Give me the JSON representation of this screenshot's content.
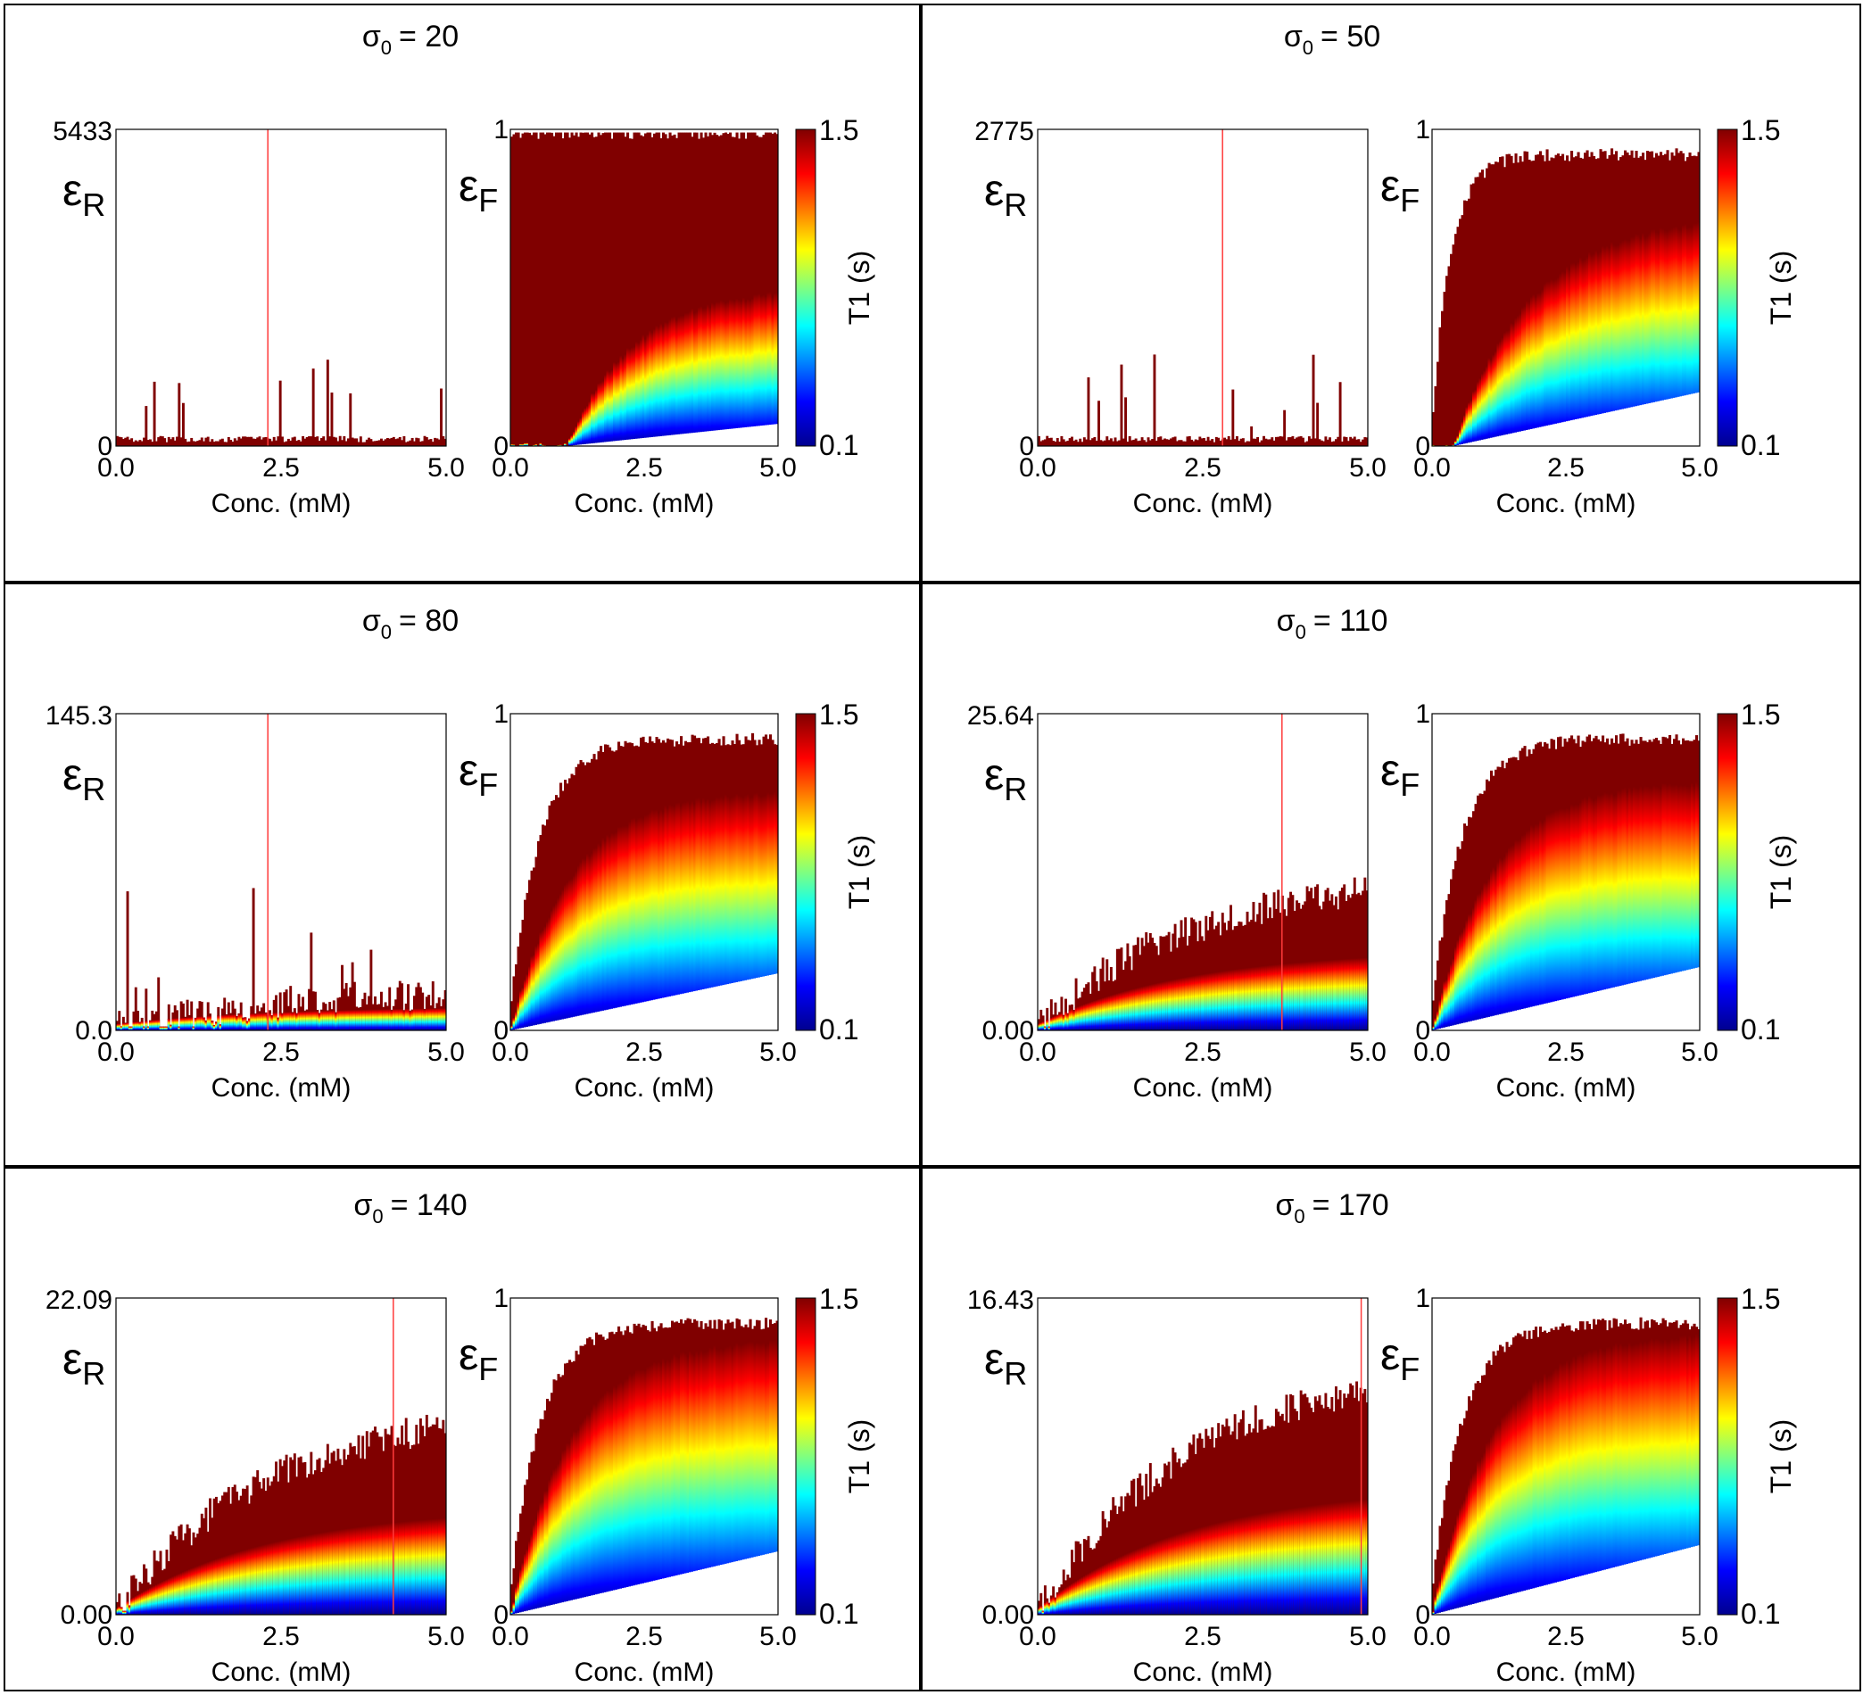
{
  "colors": {
    "colormap": [
      "#00008f",
      "#0000ff",
      "#00ffff",
      "#ffff00",
      "#ff0000",
      "#800000"
    ],
    "red_line": "#ff3b3b",
    "frame": "#000000"
  },
  "chart_data": [
    {
      "panel": "top-left",
      "title_prefix": "σ",
      "title_sub": "0",
      "title_suffix": "= 20",
      "sigma0": 20,
      "eps_r": {
        "type": "heatmap",
        "ylabel_main": "ε",
        "ylabel_sub": "R",
        "ymax_label": "5433",
        "ymin_label": "0",
        "ylim": [
          0,
          5433
        ],
        "xlabel": "Conc. (mM)",
        "xlim": [
          0.0,
          5.0
        ],
        "xticks": [
          "0.0",
          "2.5",
          "5.0"
        ],
        "envelope": "flat",
        "spike_conc": 2.3
      },
      "eps_f": {
        "type": "heatmap",
        "ylabel_main": "ε",
        "ylabel_sub": "F",
        "ymax_label": "1",
        "ymin_label": "0",
        "ylim": [
          0,
          1
        ],
        "xlabel": "Conc. (mM)",
        "xlim": [
          0.0,
          5.0
        ],
        "xticks": [
          "0.0",
          "2.5",
          "5.0"
        ],
        "onset_conc": 1.05,
        "blue_front": 0.48,
        "floor_max": 0.07
      },
      "colorbar": {
        "label": "T1 (s)",
        "max_label": "1.5",
        "min_label": "0.1",
        "range": [
          0.1,
          1.5
        ]
      }
    },
    {
      "panel": "top-right",
      "title_prefix": "σ",
      "title_sub": "0",
      "title_suffix": "= 50",
      "sigma0": 50,
      "eps_r": {
        "type": "heatmap",
        "ylabel_main": "ε",
        "ylabel_sub": "R",
        "ymax_label": "2775",
        "ymin_label": "0",
        "ylim": [
          0,
          2775
        ],
        "xlabel": "Conc. (mM)",
        "xlim": [
          0.0,
          5.0
        ],
        "xticks": [
          "0.0",
          "2.5",
          "5.0"
        ],
        "envelope": "flat",
        "spike_conc": 2.8
      },
      "eps_f": {
        "type": "heatmap",
        "ylabel_main": "ε",
        "ylabel_sub": "F",
        "ymax_label": "1",
        "ymin_label": "0",
        "ylim": [
          0,
          1
        ],
        "xlabel": "Conc. (mM)",
        "xlim": [
          0.0,
          5.0
        ],
        "xticks": [
          "0.0",
          "2.5",
          "5.0"
        ],
        "onset_conc": 0.4,
        "blue_front": 0.7,
        "floor_max": 0.17
      },
      "colorbar": {
        "label": "T1 (s)",
        "max_label": "1.5",
        "min_label": "0.1",
        "range": [
          0.1,
          1.5
        ]
      }
    },
    {
      "panel": "middle-left",
      "title_prefix": "σ",
      "title_sub": "0",
      "title_suffix": "= 80",
      "sigma0": 80,
      "eps_r": {
        "type": "heatmap",
        "ylabel_main": "ε",
        "ylabel_sub": "R",
        "ymax_label": "145.3",
        "ymin_label": "0.0",
        "ylim": [
          0,
          145.3
        ],
        "xlabel": "Conc. (mM)",
        "xlim": [
          0.0,
          5.0
        ],
        "xticks": [
          "0.0",
          "2.5",
          "5.0"
        ],
        "envelope": "low",
        "spike_conc": 2.3
      },
      "eps_f": {
        "type": "heatmap",
        "ylabel_main": "ε",
        "ylabel_sub": "F",
        "ymax_label": "1",
        "ymin_label": "0",
        "ylim": [
          0,
          1
        ],
        "xlabel": "Conc. (mM)",
        "xlim": [
          0.0,
          5.0
        ],
        "xticks": [
          "0.0",
          "2.5",
          "5.0"
        ],
        "onset_conc": 0.0,
        "blue_front": 0.75,
        "floor_max": 0.18
      },
      "colorbar": {
        "label": "T1 (s)",
        "max_label": "1.5",
        "min_label": "0.1",
        "range": [
          0.1,
          1.5
        ]
      }
    },
    {
      "panel": "middle-right",
      "title_prefix": "σ",
      "title_sub": "0",
      "title_suffix": "= 110",
      "sigma0": 110,
      "eps_r": {
        "type": "heatmap",
        "ylabel_main": "ε",
        "ylabel_sub": "R",
        "ymax_label": "25.64",
        "ymin_label": "0.00",
        "ylim": [
          0,
          25.64
        ],
        "xlabel": "Conc. (mM)",
        "xlim": [
          0.0,
          5.0
        ],
        "xticks": [
          "0.0",
          "2.5",
          "5.0"
        ],
        "envelope": "medium",
        "spike_conc": 3.7
      },
      "eps_f": {
        "type": "heatmap",
        "ylabel_main": "ε",
        "ylabel_sub": "F",
        "ymax_label": "1",
        "ymin_label": "0",
        "ylim": [
          0,
          1
        ],
        "xlabel": "Conc. (mM)",
        "xlim": [
          0.0,
          5.0
        ],
        "xticks": [
          "0.0",
          "2.5",
          "5.0"
        ],
        "onset_conc": 0.0,
        "blue_front": 0.78,
        "floor_max": 0.2
      },
      "colorbar": {
        "label": "T1 (s)",
        "max_label": "1.5",
        "min_label": "0.1",
        "range": [
          0.1,
          1.5
        ]
      }
    },
    {
      "panel": "bottom-left",
      "title_prefix": "σ",
      "title_sub": "0",
      "title_suffix": "= 140",
      "sigma0": 140,
      "eps_r": {
        "type": "heatmap",
        "ylabel_main": "ε",
        "ylabel_sub": "R",
        "ymax_label": "22.09",
        "ymin_label": "0.00",
        "ylim": [
          0,
          22.09
        ],
        "xlabel": "Conc. (mM)",
        "xlim": [
          0.0,
          5.0
        ],
        "xticks": [
          "0.0",
          "2.5",
          "5.0"
        ],
        "envelope": "high",
        "spike_conc": 4.2
      },
      "eps_f": {
        "type": "heatmap",
        "ylabel_main": "ε",
        "ylabel_sub": "F",
        "ymax_label": "1",
        "ymin_label": "0",
        "ylim": [
          0,
          1
        ],
        "xlabel": "Conc. (mM)",
        "xlim": [
          0.0,
          5.0
        ],
        "xticks": [
          "0.0",
          "2.5",
          "5.0"
        ],
        "onset_conc": 0.0,
        "blue_front": 0.86,
        "floor_max": 0.2
      },
      "colorbar": {
        "label": "T1 (s)",
        "max_label": "1.5",
        "min_label": "0.1",
        "range": [
          0.1,
          1.5
        ]
      }
    },
    {
      "panel": "bottom-right",
      "title_prefix": "σ",
      "title_sub": "0",
      "title_suffix": "= 170",
      "sigma0": 170,
      "eps_r": {
        "type": "heatmap",
        "ylabel_main": "ε",
        "ylabel_sub": "R",
        "ymax_label": "16.43",
        "ymin_label": "0.00",
        "ylim": [
          0,
          16.43
        ],
        "xlabel": "Conc. (mM)",
        "xlim": [
          0.0,
          5.0
        ],
        "xticks": [
          "0.0",
          "2.5",
          "5.0"
        ],
        "envelope": "higher",
        "spike_conc": 4.9
      },
      "eps_f": {
        "type": "heatmap",
        "ylabel_main": "ε",
        "ylabel_sub": "F",
        "ymax_label": "1",
        "ymin_label": "0",
        "ylim": [
          0,
          1
        ],
        "xlabel": "Conc. (mM)",
        "xlim": [
          0.0,
          5.0
        ],
        "xticks": [
          "0.0",
          "2.5",
          "5.0"
        ],
        "onset_conc": 0.0,
        "blue_front": 0.88,
        "floor_max": 0.22
      },
      "colorbar": {
        "label": "T1 (s)",
        "max_label": "1.5",
        "min_label": "0.1",
        "range": [
          0.1,
          1.5
        ]
      }
    }
  ]
}
